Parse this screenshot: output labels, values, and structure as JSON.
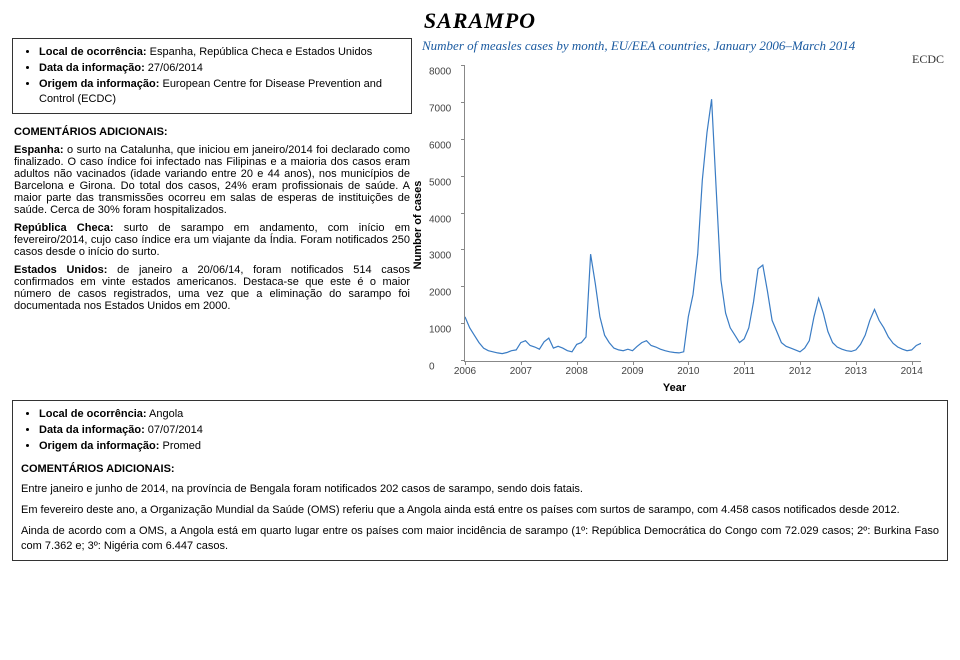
{
  "title": "SARAMPO",
  "top": {
    "localLabel": "Local de ocorrência:",
    "localValue": " Espanha, República Checa e Estados Unidos",
    "dataLabel": "Data da informação:",
    "dataValue": " 27/06/2014",
    "origemLabel": "Origem da informação:",
    "origemValue": " European Centre for Disease Prevention and Control (ECDC)"
  },
  "comments": {
    "head": "COMENTÁRIOS ADICIONAIS:",
    "es_label": "Espanha:",
    "es_text": " o surto na Catalunha, que iniciou em janeiro/2014 foi declarado como finalizado. O caso índice foi infectado nas Filipinas e a maioria dos casos eram adultos não vacinados (idade variando entre 20 e 44 anos), nos municípios de Barcelona e Girona. Do total dos casos, 24% eram profissionais de saúde. A maior parte das transmissões ocorreu em salas de esperas de instituições de saúde. Cerca de 30% foram hospitalizados.",
    "cz_label": "República Checa:",
    "cz_text": " surto de sarampo em andamento, com início em fevereiro/2014, cujo caso índice era um viajante da Índia. Foram notificados 250 casos desde o início do surto.",
    "us_label": "Estados Unidos:",
    "us_text": " de janeiro a 20/06/14, foram notificados 514 casos confirmados em vinte estados americanos. Destaca-se que este é o maior número de casos registrados, uma vez que a eliminação do sarampo foi documentada nos Estados Unidos em 2000."
  },
  "chart": {
    "title": "Number of measles cases by month, EU/EEA countries, January 2006–March 2014",
    "source": "ECDC",
    "ylabel": "Number of cases",
    "xlabel": "Year",
    "yticks": [
      0,
      1000,
      2000,
      3000,
      4000,
      5000,
      6000,
      7000,
      8000
    ],
    "ymax": 8000,
    "xticks": [
      "2006",
      "2007",
      "2008",
      "2009",
      "2010",
      "2011",
      "2012",
      "2013",
      "2014"
    ],
    "line_color": "#3a7cc4",
    "line_width": 1.2,
    "grid_color": "#888888",
    "background": "#ffffff",
    "values": [
      1200,
      900,
      700,
      500,
      350,
      280,
      250,
      220,
      200,
      230,
      280,
      300,
      500,
      550,
      420,
      380,
      320,
      520,
      620,
      350,
      400,
      350,
      280,
      250,
      450,
      500,
      650,
      2900,
      2100,
      1200,
      700,
      500,
      350,
      300,
      280,
      320,
      280,
      400,
      500,
      550,
      420,
      380,
      320,
      280,
      250,
      230,
      220,
      250,
      1200,
      1800,
      2900,
      4900,
      6200,
      7100,
      4600,
      2200,
      1300,
      900,
      700,
      500,
      600,
      900,
      1600,
      2500,
      2600,
      1900,
      1100,
      800,
      500,
      400,
      350,
      300,
      250,
      350,
      550,
      1200,
      1700,
      1300,
      800,
      500,
      380,
      320,
      280,
      260,
      300,
      450,
      700,
      1100,
      1400,
      1100,
      900,
      650,
      480,
      380,
      320,
      280,
      300,
      420,
      480
    ]
  },
  "bottom": {
    "localLabel": "Local de ocorrência:",
    "localValue": " Angola",
    "dataLabel": "Data da informação:",
    "dataValue": " 07/07/2014",
    "origemLabel": "Origem da informação:",
    "origemValue": " Promed",
    "head": "COMENTÁRIOS ADICIONAIS:",
    "p1": "Entre janeiro e junho de 2014, na província de Bengala foram notificados 202 casos de sarampo, sendo dois fatais.",
    "p2": "Em fevereiro deste ano, a Organização Mundial da Saúde (OMS) referiu que a Angola ainda está entre os países com surtos de sarampo, com 4.458 casos notificados desde 2012.",
    "p3": "Ainda de acordo com a OMS, a Angola está em quarto lugar entre os países com maior incidência de sarampo (1º: República Democrática do Congo com 72.029 casos; 2º: Burkina Faso com 7.362 e; 3º: Nigéria com 6.447 casos."
  }
}
